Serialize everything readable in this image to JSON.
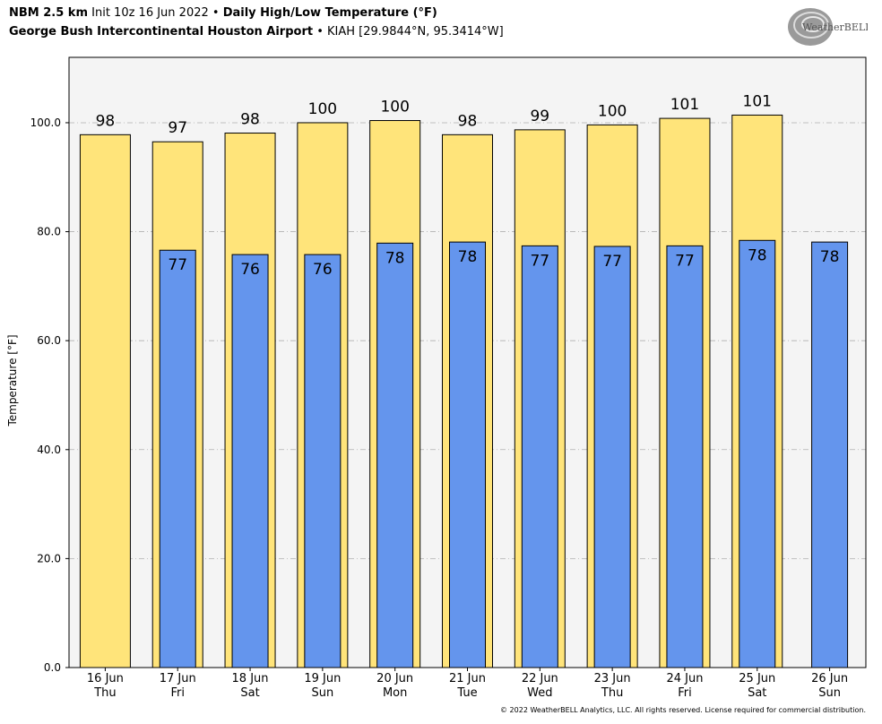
{
  "header": {
    "model": "NBM 2.5 km",
    "init": "Init 10z 16 Jun 2022",
    "product": "Daily High/Low Temperature (°F)",
    "location": "George Bush Intercontinental Houston Airport",
    "station": "KIAH [29.9844°N, 95.3414°W]"
  },
  "logo": {
    "text": "WeatherBELL"
  },
  "footer": {
    "copyright": "© 2022 WeatherBELL Analytics, LLC. All rights reserved. License required for commercial distribution."
  },
  "colors": {
    "high": "#ffe47a",
    "low": "#6495ed",
    "plot_bg": "#f4f4f4"
  },
  "chart_data": {
    "type": "bar",
    "title": "Daily High/Low Temperature (°F)",
    "ylabel": "Temperature [°F]",
    "xlabel": "",
    "ylim": [
      0,
      112
    ],
    "yticks": [
      "0.0",
      "20.0",
      "40.0",
      "60.0",
      "80.0",
      "100.0"
    ],
    "grid": true,
    "categories": [
      {
        "date": "16 Jun",
        "day": "Thu"
      },
      {
        "date": "17 Jun",
        "day": "Fri"
      },
      {
        "date": "18 Jun",
        "day": "Sat"
      },
      {
        "date": "19 Jun",
        "day": "Sun"
      },
      {
        "date": "20 Jun",
        "day": "Mon"
      },
      {
        "date": "21 Jun",
        "day": "Tue"
      },
      {
        "date": "22 Jun",
        "day": "Wed"
      },
      {
        "date": "23 Jun",
        "day": "Thu"
      },
      {
        "date": "24 Jun",
        "day": "Fri"
      },
      {
        "date": "25 Jun",
        "day": "Sat"
      },
      {
        "date": "26 Jun",
        "day": "Sun"
      }
    ],
    "series": [
      {
        "key": "high",
        "values": [
          97.8,
          96.5,
          98.1,
          100.0,
          100.4,
          97.8,
          98.7,
          99.6,
          100.8,
          101.4,
          null
        ],
        "labels": [
          "98",
          "97",
          "98",
          "100",
          "100",
          "98",
          "99",
          "100",
          "101",
          "101",
          ""
        ]
      },
      {
        "key": "low",
        "values": [
          null,
          76.6,
          75.8,
          75.8,
          77.9,
          78.1,
          77.4,
          77.3,
          77.4,
          78.4,
          78.1
        ],
        "labels": [
          "",
          "77",
          "76",
          "76",
          "78",
          "78",
          "77",
          "77",
          "77",
          "78",
          "78"
        ]
      }
    ]
  }
}
